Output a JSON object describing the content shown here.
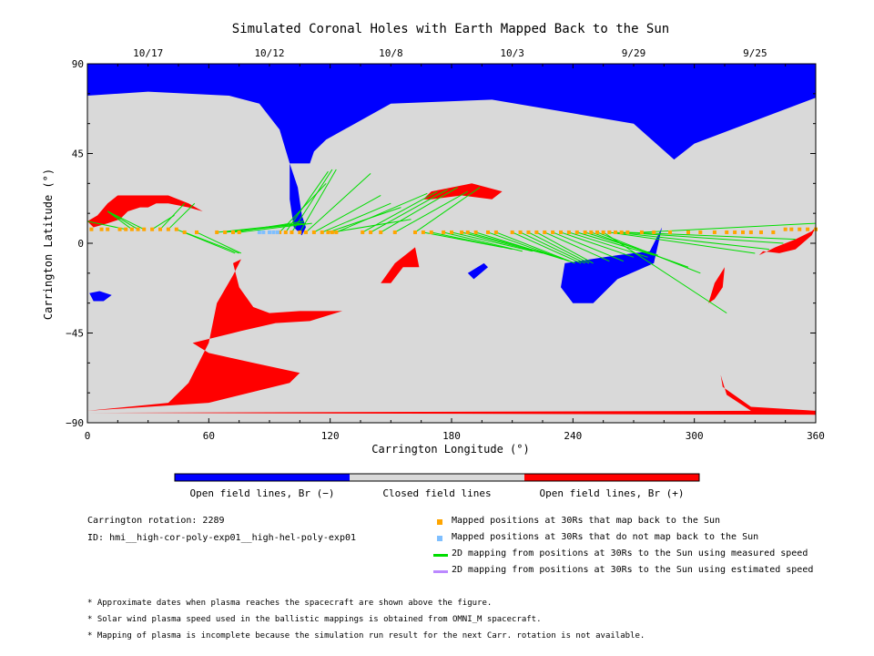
{
  "title": "Simulated Coronal Holes with Earth Mapped Back to the Sun",
  "chart_data": {
    "type": "scatter",
    "title": "Simulated Coronal Holes with Earth Mapped Back to the Sun",
    "xlabel": "Carrington Longitude (°)",
    "ylabel": "Carrington Latitude (°)",
    "xlim": [
      0,
      360
    ],
    "ylim": [
      -90,
      90
    ],
    "x_ticks": [
      0,
      60,
      120,
      180,
      240,
      300,
      360
    ],
    "y_ticks": [
      -90,
      -45,
      0,
      45,
      90
    ],
    "top_axis_dates": [
      {
        "label": "10/17",
        "lon": 30
      },
      {
        "label": "10/12",
        "lon": 90
      },
      {
        "label": "10/8",
        "lon": 150
      },
      {
        "label": "10/3",
        "lon": 210
      },
      {
        "label": "9/29",
        "lon": 270
      },
      {
        "label": "9/25",
        "lon": 330
      }
    ],
    "colorbar": [
      "Open field lines, Br (−)",
      "Closed field lines",
      "Open field lines, Br (+)"
    ],
    "colors": {
      "negative": "#0000ff",
      "closed": "#d9d9d9",
      "positive": "#ff0000",
      "mapped": "#ffa500",
      "unmapped": "#7fbfff",
      "measured": "#00dd00",
      "estimated": "#bb88ff"
    },
    "series": [
      {
        "name": "Mapped positions at 30Rs that map back to the Sun",
        "marker": "square",
        "points": [
          [
            2,
            7
          ],
          [
            7,
            7
          ],
          [
            10,
            7
          ],
          [
            16,
            7
          ],
          [
            19,
            7
          ],
          [
            22,
            7
          ],
          [
            25,
            7
          ],
          [
            28,
            7
          ],
          [
            32,
            7
          ],
          [
            36,
            7
          ],
          [
            40,
            7
          ],
          [
            44,
            7
          ],
          [
            48,
            5.5
          ],
          [
            54,
            5.5
          ],
          [
            64,
            5.5
          ],
          [
            68,
            5.5
          ],
          [
            72,
            5.5
          ],
          [
            75,
            5.5
          ],
          [
            95,
            5.5
          ],
          [
            98,
            5.5
          ],
          [
            101,
            5.5
          ],
          [
            105,
            5.5
          ],
          [
            108,
            5.5
          ],
          [
            112,
            5.5
          ],
          [
            116,
            5.5
          ],
          [
            119,
            5.5
          ],
          [
            121,
            5.5
          ],
          [
            123,
            5.5
          ],
          [
            136,
            5.5
          ],
          [
            140,
            5.5
          ],
          [
            145,
            5.5
          ],
          [
            152,
            5.5
          ],
          [
            162,
            5.5
          ],
          [
            166,
            5.5
          ],
          [
            170,
            5.5
          ],
          [
            176,
            5.5
          ],
          [
            180,
            5.5
          ],
          [
            185,
            5.5
          ],
          [
            188,
            5.5
          ],
          [
            192,
            5.5
          ],
          [
            198,
            5.5
          ],
          [
            202,
            5.5
          ],
          [
            210,
            5.5
          ],
          [
            214,
            5.5
          ],
          [
            218,
            5.5
          ],
          [
            222,
            5.5
          ],
          [
            226,
            5.5
          ],
          [
            230,
            5.5
          ],
          [
            234,
            5.5
          ],
          [
            238,
            5.5
          ],
          [
            242,
            5.5
          ],
          [
            246,
            5.5
          ],
          [
            249,
            5.5
          ],
          [
            252,
            5.5
          ],
          [
            255,
            5.5
          ],
          [
            258,
            5.5
          ],
          [
            261,
            5.5
          ],
          [
            264,
            5.5
          ],
          [
            267,
            5.5
          ],
          [
            274,
            5.5
          ],
          [
            280,
            5.5
          ],
          [
            288,
            5.5
          ],
          [
            297,
            5.5
          ],
          [
            303,
            5.5
          ],
          [
            310,
            5.5
          ],
          [
            316,
            5.5
          ],
          [
            320,
            5.5
          ],
          [
            324,
            5.5
          ],
          [
            328,
            5.5
          ],
          [
            333,
            5.5
          ],
          [
            339,
            5.5
          ],
          [
            345,
            7
          ],
          [
            348,
            7
          ],
          [
            352,
            7
          ],
          [
            356,
            7
          ],
          [
            360,
            7
          ]
        ],
        "targets": [
          [
            0,
            11
          ],
          [
            10,
            16
          ],
          [
            10,
            16
          ],
          [
            10,
            16
          ],
          [
            43,
            14
          ],
          [
            48,
            20
          ],
          [
            53,
            20
          ],
          [
            73,
            -5
          ],
          [
            75,
            -5
          ],
          [
            76,
            -5
          ],
          [
            106,
            10
          ],
          [
            108,
            10
          ],
          [
            107,
            11
          ],
          [
            111,
            10
          ],
          [
            118,
            30
          ],
          [
            119,
            36
          ],
          [
            121,
            37
          ],
          [
            123,
            37
          ],
          [
            140,
            35
          ],
          [
            145,
            24
          ],
          [
            150,
            20
          ],
          [
            155,
            18
          ],
          [
            160,
            12
          ],
          [
            168,
            25
          ],
          [
            173,
            26
          ],
          [
            178,
            27
          ],
          [
            183,
            28
          ],
          [
            188,
            26
          ],
          [
            194,
            28
          ],
          [
            205,
            -2
          ],
          [
            210,
            -3
          ],
          [
            215,
            -4
          ],
          [
            220,
            -4
          ],
          [
            225,
            -5
          ],
          [
            230,
            -6
          ],
          [
            235,
            -8
          ],
          [
            238,
            -9
          ],
          [
            241,
            -10
          ],
          [
            244,
            -10
          ],
          [
            246,
            -10
          ],
          [
            248,
            -10
          ],
          [
            250,
            -10
          ],
          [
            258,
            -9
          ],
          [
            265,
            -9
          ],
          [
            270,
            -7
          ],
          [
            277,
            -7
          ],
          [
            280,
            -6
          ],
          [
            282,
            -6
          ],
          [
            297,
            -12
          ],
          [
            303,
            -15
          ],
          [
            316,
            -35
          ],
          [
            330,
            -5
          ],
          [
            337,
            -3
          ],
          [
            344,
            0
          ],
          [
            350,
            2
          ],
          [
            360,
            10
          ]
        ]
      },
      {
        "name": "Mapped positions at 30Rs that do not map back to the Sun",
        "marker": "square",
        "points": [
          [
            85,
            5.5
          ],
          [
            87,
            5.5
          ],
          [
            90,
            5.5
          ],
          [
            92,
            5.5
          ],
          [
            94,
            5.5
          ]
        ]
      },
      {
        "name": "2D mapping from positions at 30Rs to the Sun using measured speed",
        "marker": "line"
      },
      {
        "name": "2D mapping from positions at 30Rs to the Sun using estimated speed",
        "marker": "line"
      }
    ],
    "regions": {
      "negative": [
        [
          [
            0,
            90
          ],
          [
            360,
            90
          ],
          [
            360,
            73
          ],
          [
            300,
            50
          ],
          [
            290,
            42
          ],
          [
            270,
            60
          ],
          [
            200,
            72
          ],
          [
            150,
            70
          ],
          [
            118,
            52
          ],
          [
            112,
            46
          ],
          [
            110,
            40
          ],
          [
            100,
            40
          ],
          [
            95,
            57
          ],
          [
            85,
            70
          ],
          [
            70,
            74
          ],
          [
            30,
            76
          ],
          [
            0,
            74
          ]
        ],
        [
          [
            100,
            40
          ],
          [
            104,
            28
          ],
          [
            106,
            14
          ],
          [
            108,
            8
          ],
          [
            106,
            4
          ],
          [
            102,
            8
          ],
          [
            100,
            22
          ]
        ],
        [
          [
            236,
            -10
          ],
          [
            262,
            -6
          ],
          [
            278,
            -4
          ],
          [
            284,
            8
          ],
          [
            280,
            -10
          ],
          [
            262,
            -18
          ],
          [
            250,
            -30
          ],
          [
            240,
            -30
          ],
          [
            234,
            -22
          ]
        ],
        [
          [
            1,
            -25
          ],
          [
            6,
            -24
          ],
          [
            12,
            -26
          ],
          [
            8,
            -29
          ],
          [
            3,
            -29
          ]
        ],
        [
          [
            188,
            -15
          ],
          [
            196,
            -10
          ],
          [
            198,
            -12
          ],
          [
            191,
            -18
          ]
        ]
      ],
      "positive": [
        [
          [
            0,
            -84
          ],
          [
            60,
            -80
          ],
          [
            100,
            -70
          ],
          [
            105,
            -65
          ],
          [
            82,
            -60
          ],
          [
            60,
            -55
          ],
          [
            52,
            -50
          ],
          [
            76,
            -44
          ],
          [
            93,
            -40
          ],
          [
            110,
            -39
          ],
          [
            126,
            -34
          ],
          [
            105,
            -34
          ],
          [
            90,
            -35
          ],
          [
            82,
            -32
          ],
          [
            75,
            -22
          ],
          [
            72,
            -10
          ],
          [
            76,
            -8
          ],
          [
            72,
            -16
          ],
          [
            64,
            -30
          ],
          [
            60,
            -50
          ],
          [
            50,
            -70
          ],
          [
            40,
            -80
          ],
          [
            0,
            -84
          ]
        ],
        [
          [
            0,
            -85
          ],
          [
            360,
            -86
          ],
          [
            360,
            -84
          ],
          [
            328,
            -82
          ],
          [
            314,
            -72
          ],
          [
            313,
            -66
          ],
          [
            316,
            -76
          ],
          [
            328,
            -84
          ]
        ],
        [
          [
            0,
            11
          ],
          [
            5,
            14
          ],
          [
            10,
            20
          ],
          [
            15,
            24
          ],
          [
            24,
            24
          ],
          [
            40,
            24
          ],
          [
            50,
            20
          ],
          [
            57,
            16
          ],
          [
            50,
            18
          ],
          [
            40,
            20
          ],
          [
            34,
            20
          ],
          [
            30,
            18
          ],
          [
            26,
            18
          ],
          [
            20,
            16
          ],
          [
            16,
            12
          ],
          [
            10,
            10
          ],
          [
            3,
            8
          ]
        ],
        [
          [
            166,
            22
          ],
          [
            170,
            26
          ],
          [
            180,
            28
          ],
          [
            190,
            30
          ],
          [
            205,
            26
          ],
          [
            200,
            22
          ],
          [
            185,
            24
          ],
          [
            170,
            22
          ]
        ],
        [
          [
            145,
            -20
          ],
          [
            152,
            -10
          ],
          [
            162,
            -2
          ],
          [
            164,
            -12
          ],
          [
            156,
            -12
          ],
          [
            150,
            -20
          ]
        ],
        [
          [
            310,
            -20
          ],
          [
            315,
            -12
          ],
          [
            314,
            -22
          ],
          [
            310,
            -28
          ],
          [
            307,
            -30
          ]
        ],
        [
          [
            332,
            -6
          ],
          [
            340,
            -2
          ],
          [
            350,
            2
          ],
          [
            358,
            6
          ],
          [
            360,
            8
          ],
          [
            358,
            4
          ],
          [
            350,
            -3
          ],
          [
            342,
            -5
          ],
          [
            334,
            -4
          ]
        ]
      ]
    }
  },
  "colorbar_labels": {
    "neg": "Open field lines, Br (−)",
    "closed": "Closed field lines",
    "pos": "Open field lines, Br (+)"
  },
  "info": {
    "rotation": "Carrington rotation: 2289",
    "id": "ID: hmi__high-cor-poly-exp01__high-hel-poly-exp01"
  },
  "legend": [
    "Mapped positions at 30Rs that map back to the Sun",
    "Mapped positions at 30Rs that do not map back to the Sun",
    "2D mapping from positions at 30Rs to the Sun using measured speed",
    "2D mapping from positions at 30Rs to the Sun using estimated speed"
  ],
  "notes": [
    "* Approximate dates when plasma reaches the spacecraft are shown above the figure.",
    "* Solar wind plasma speed used in the ballistic mappings is obtained from OMNI_M spacecraft.",
    "* Mapping of plasma is incomplete because the simulation run result for the next Carr. rotation is not available."
  ]
}
